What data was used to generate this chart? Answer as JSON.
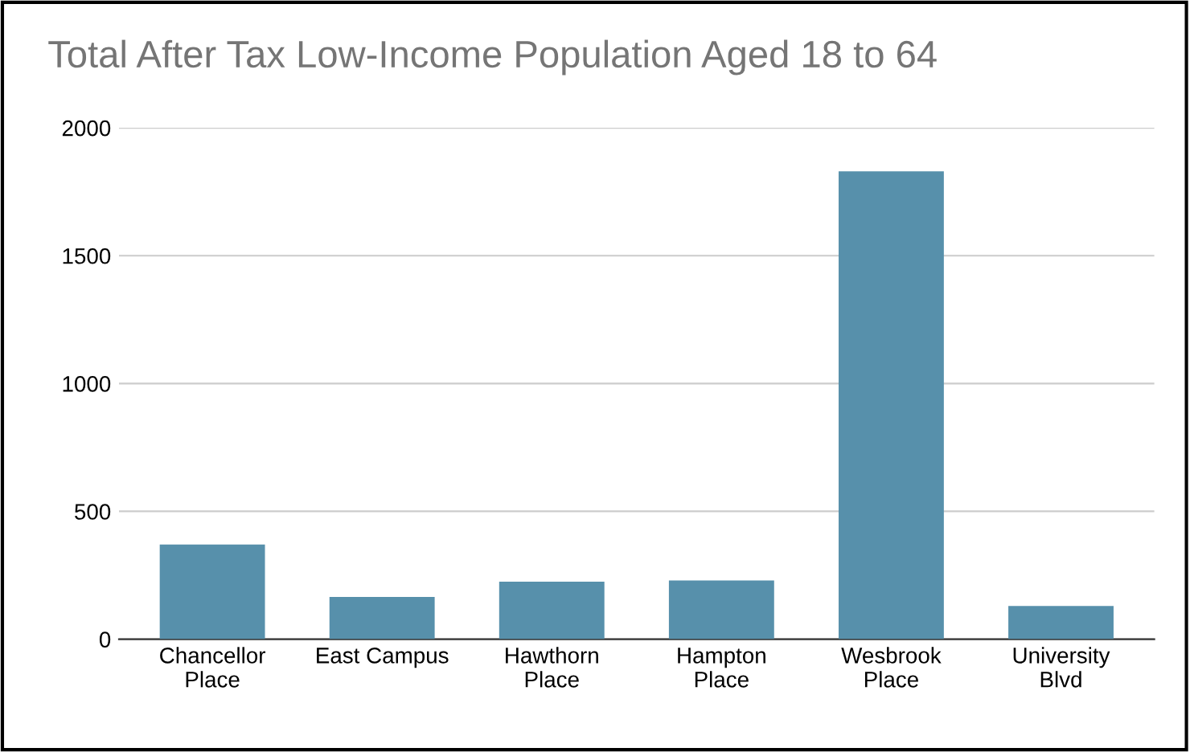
{
  "chart_data": {
    "type": "bar",
    "title": "Total After Tax Low-Income Population Aged 18 to 64",
    "categories": [
      "Chancellor\nPlace",
      "East Campus",
      "Hawthorn\nPlace",
      "Hampton\nPlace",
      "Wesbrook\nPlace",
      "University\nBlvd"
    ],
    "values": [
      370,
      165,
      225,
      230,
      1830,
      130
    ],
    "color": "#5790ab",
    "ylim": [
      0,
      2000
    ],
    "yticks": [
      0,
      500,
      1000,
      1500,
      2000
    ],
    "grid": "y"
  }
}
